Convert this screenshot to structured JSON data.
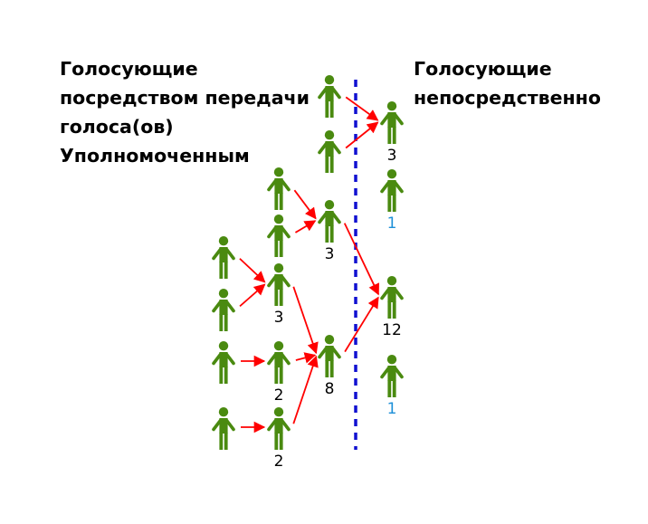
{
  "headings": {
    "proxy_voters": [
      "Голосующие",
      "посредством передачи",
      "голоса(ов)",
      "Уполномоченным"
    ],
    "direct_voters": [
      "Голосующие",
      "непосредственно"
    ]
  },
  "colors": {
    "person": "#4a8a10",
    "arrow": "#ff0000",
    "divider": "#1010d0",
    "count_default": "#000000",
    "count_direct": "#1e90d8"
  },
  "icon": "person-icon",
  "people": [
    {
      "id": "p1",
      "count": ""
    },
    {
      "id": "p2",
      "count": ""
    },
    {
      "id": "d1",
      "count": "3"
    },
    {
      "id": "d2",
      "count": "1",
      "style": "direct"
    },
    {
      "id": "q1",
      "count": ""
    },
    {
      "id": "q2",
      "count": ""
    },
    {
      "id": "r1",
      "count": "3"
    },
    {
      "id": "s1",
      "count": ""
    },
    {
      "id": "s2",
      "count": ""
    },
    {
      "id": "t1",
      "count": "3"
    },
    {
      "id": "s3",
      "count": ""
    },
    {
      "id": "t2",
      "count": "2"
    },
    {
      "id": "r2",
      "count": "8"
    },
    {
      "id": "s4",
      "count": ""
    },
    {
      "id": "t3",
      "count": "2"
    },
    {
      "id": "d3",
      "count": "12"
    },
    {
      "id": "d4",
      "count": "1",
      "style": "direct"
    }
  ],
  "delegations": [
    {
      "from": "p1",
      "to": "d1"
    },
    {
      "from": "p2",
      "to": "d1"
    },
    {
      "from": "q1",
      "to": "r1"
    },
    {
      "from": "q2",
      "to": "r1"
    },
    {
      "from": "r1",
      "to": "d3"
    },
    {
      "from": "s1",
      "to": "t1"
    },
    {
      "from": "s2",
      "to": "t1"
    },
    {
      "from": "t1",
      "to": "r2"
    },
    {
      "from": "s3",
      "to": "t2"
    },
    {
      "from": "t2",
      "to": "r2"
    },
    {
      "from": "s4",
      "to": "t3"
    },
    {
      "from": "t3",
      "to": "r2"
    },
    {
      "from": "r2",
      "to": "d3"
    }
  ]
}
